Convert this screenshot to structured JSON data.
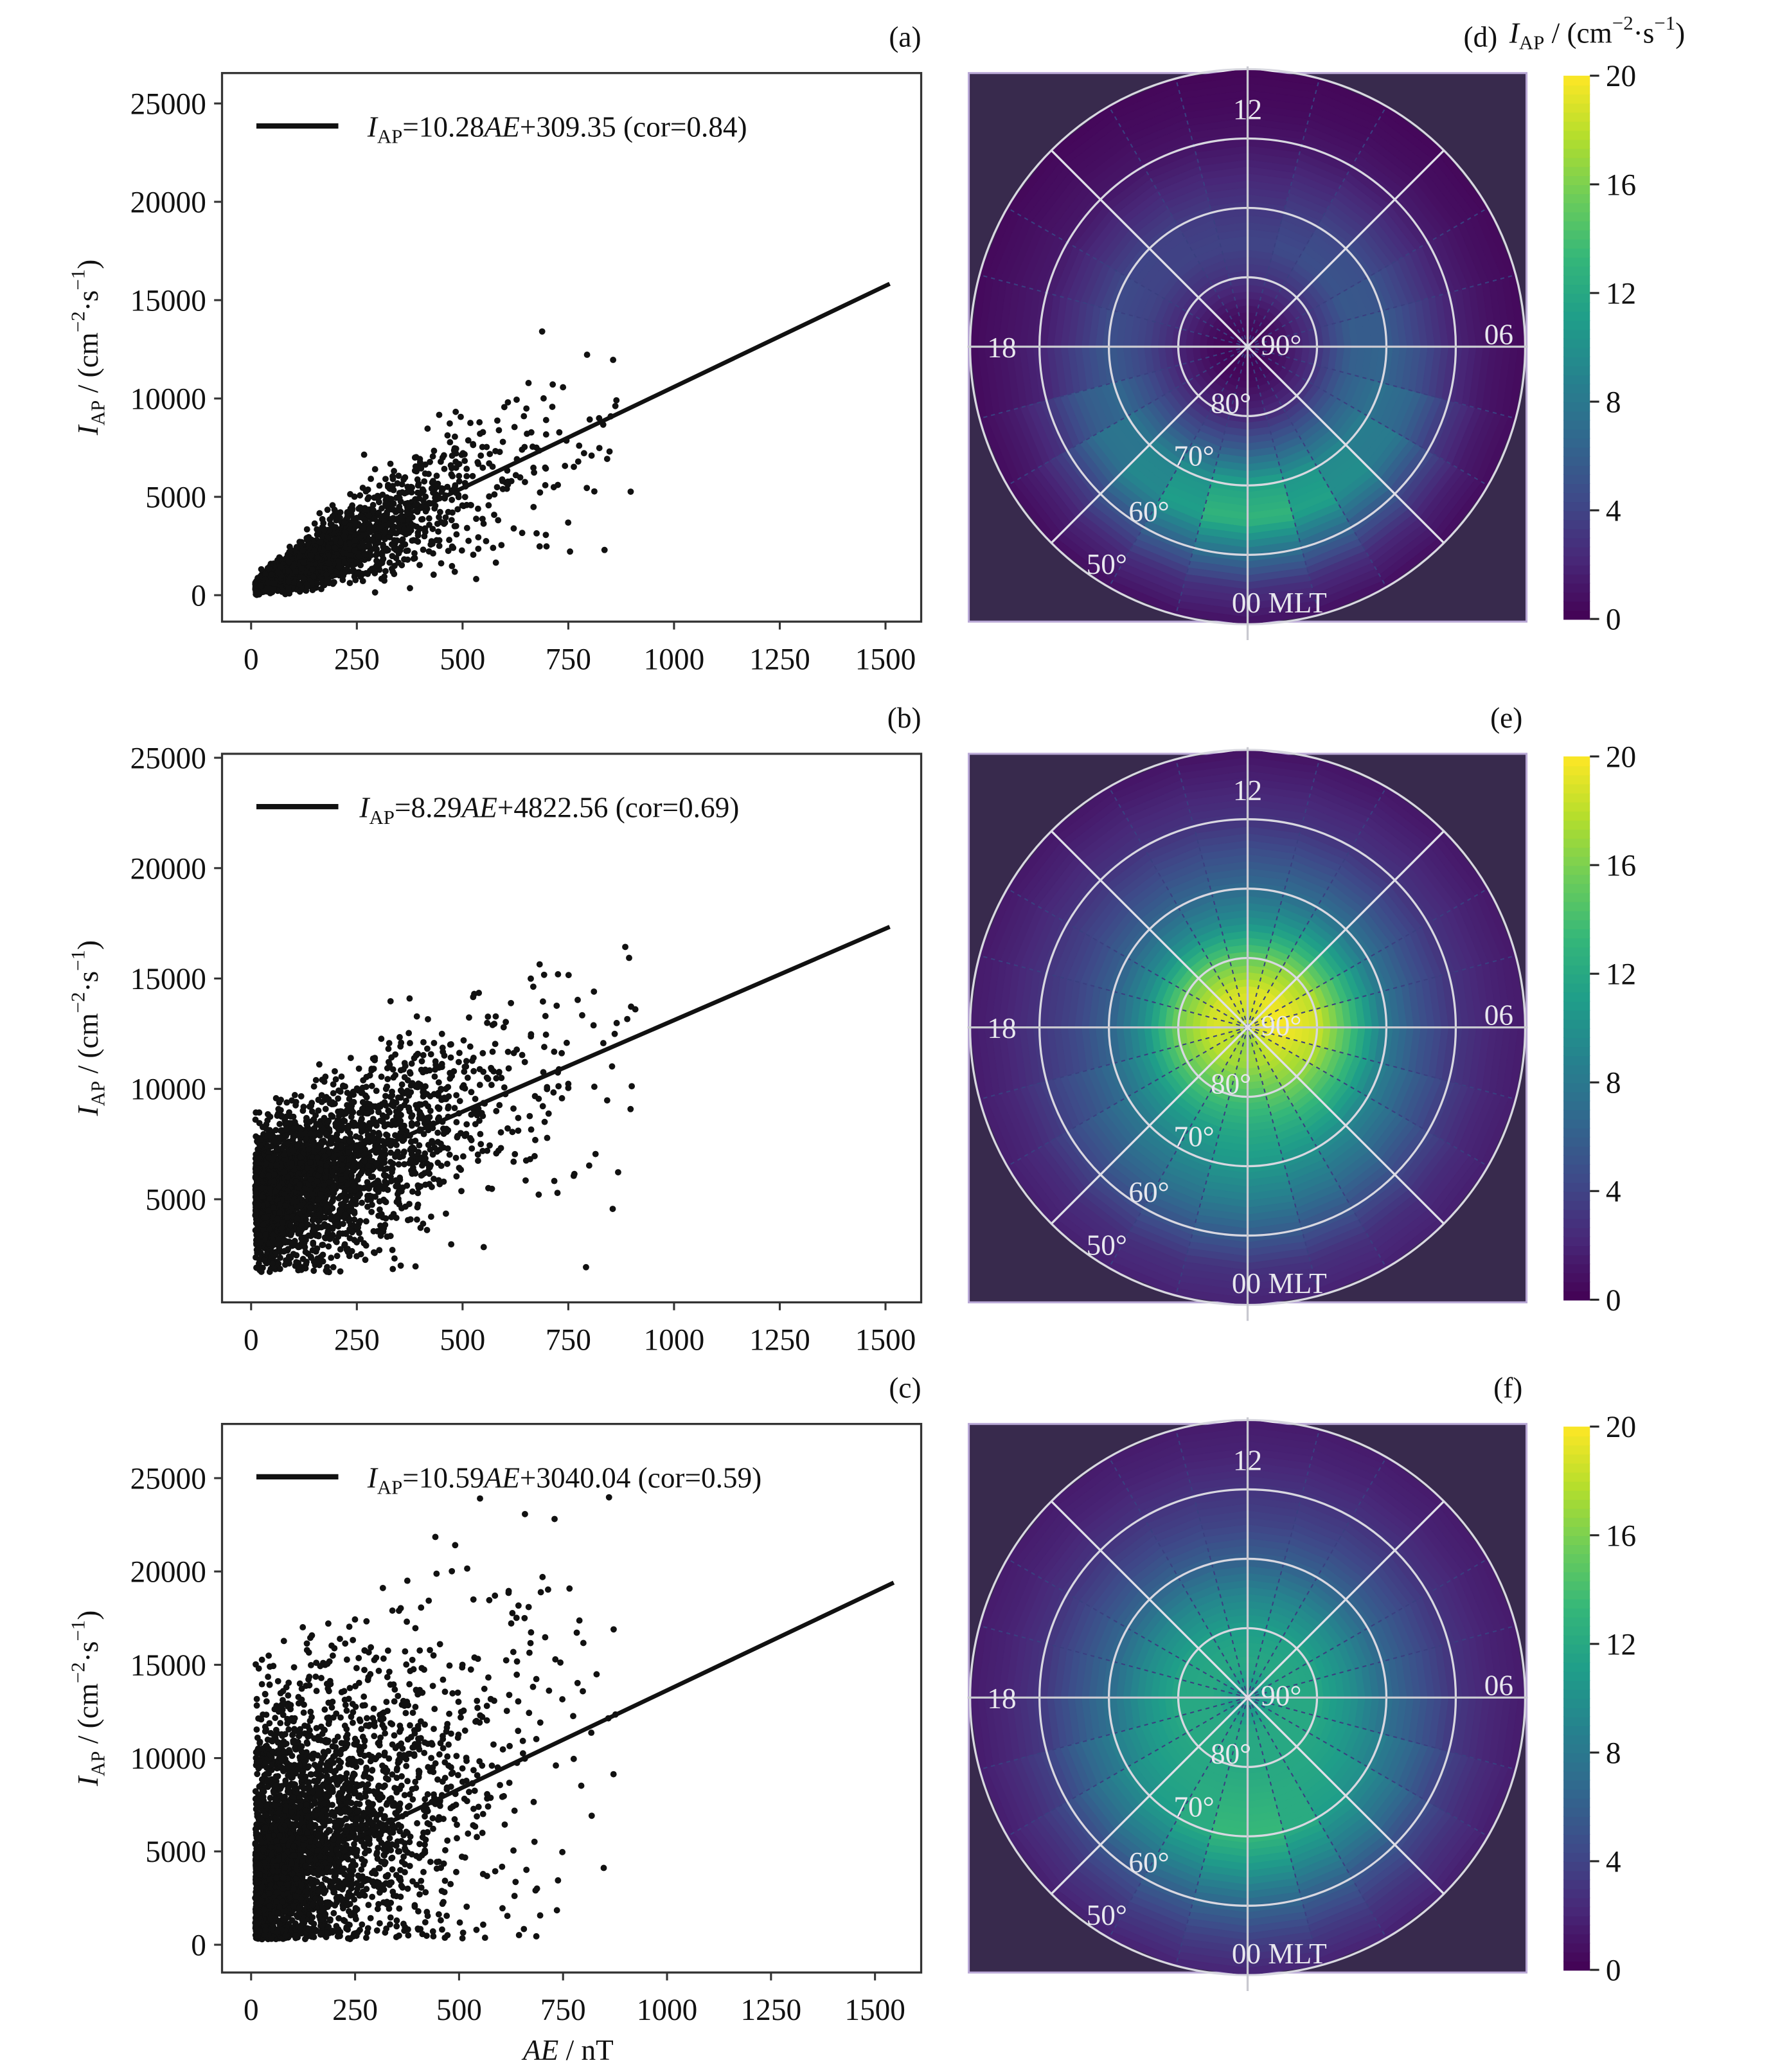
{
  "chart_data": [
    {
      "panel": "(a)",
      "type": "scatter",
      "xlim": [
        0,
        1500
      ],
      "ylim": [
        0,
        25000
      ],
      "xticks": [
        "0",
        "250",
        "500",
        "750",
        "1000",
        "1250",
        "1500"
      ],
      "yticks": [
        "0",
        "5000",
        "10000",
        "15000",
        "20000",
        "25000"
      ],
      "ylabel": {
        "var": "I",
        "sub": "AP",
        "unit": " / (cm",
        "sup1": "−2",
        "mid": "·s",
        "sup2": "−1",
        "end": ")"
      },
      "fit": {
        "slope": 10.28,
        "intercept": 309.35,
        "cor": 0.84
      },
      "legend": {
        "var": "I",
        "sub": "AP",
        "pre": "=10.28",
        "it": "AE",
        "post": "+309.35 (cor=0.84)"
      },
      "legend_placement": "top-left"
    },
    {
      "panel": "(b)",
      "type": "scatter",
      "xlim": [
        0,
        1500
      ],
      "ylim": [
        1500,
        25000
      ],
      "xticks": [
        "0",
        "250",
        "500",
        "750",
        "1000",
        "1250",
        "1500"
      ],
      "yticks": [
        "5000",
        "10000",
        "15000",
        "20000",
        "25000"
      ],
      "ylabel": {
        "var": "I",
        "sub": "AP",
        "unit": " / (cm",
        "sup1": "−2",
        "mid": "·s",
        "sup2": "−1",
        "end": ")"
      },
      "fit": {
        "slope": 8.29,
        "intercept": 4822.56,
        "cor": 0.69
      },
      "legend": {
        "var": "I",
        "sub": "AP",
        "pre": "=8.29",
        "it": "AE",
        "post": "+4822.56 (cor=0.69)"
      },
      "legend_placement": "top-left"
    },
    {
      "panel": "(c)",
      "type": "scatter",
      "xlim": [
        0,
        1550
      ],
      "ylim": [
        0,
        27000
      ],
      "xticks": [
        "0",
        "250",
        "500",
        "750",
        "1000",
        "1250",
        "1500"
      ],
      "yticks": [
        "0",
        "5000",
        "10000",
        "15000",
        "20000",
        "25000"
      ],
      "ylabel": {
        "var": "I",
        "sub": "AP",
        "unit": " / (cm",
        "sup1": "−2",
        "mid": "·s",
        "sup2": "−1",
        "end": ")"
      },
      "xlabel": {
        "it": "AE",
        "rest": " / nT"
      },
      "fit": {
        "slope": 10.59,
        "intercept": 3040.04,
        "cor": 0.59
      },
      "legend": {
        "var": "I",
        "sub": "AP",
        "pre": "=10.59",
        "it": "AE",
        "post": "+3040.04 (cor=0.59)"
      },
      "legend_placement": "top-left"
    },
    {
      "panel": "(d)",
      "type": "heatmap",
      "projection": "polar",
      "colormap": "viridis",
      "clim": [
        0,
        20
      ],
      "cbar_ticks": [
        "0",
        "4",
        "8",
        "12",
        "16",
        "20"
      ],
      "cbar_label": {
        "var": "I",
        "sub": "AP",
        "unit": " / (cm",
        "sup1": "−2",
        "mid": "·s",
        "sup2": "−1",
        "end": ")"
      },
      "mlt_labels": [
        "12",
        "06",
        "00 MLT",
        "18"
      ],
      "lat_labels": [
        "90°",
        "80°",
        "70°",
        "60°",
        "50°"
      ],
      "latitudes": [
        90,
        85,
        80,
        75,
        70,
        65,
        60,
        55,
        50
      ],
      "profiles": {
        "00": [
          0,
          0.5,
          2,
          6,
          12,
          14,
          8,
          3,
          1
        ],
        "06": [
          0,
          1,
          3,
          6,
          6,
          4,
          2,
          1,
          0.5
        ],
        "12": [
          0,
          1,
          3,
          4,
          3,
          2,
          1,
          0.5,
          0.3
        ],
        "18": [
          0,
          0.5,
          2,
          4,
          5,
          3,
          1.5,
          1,
          0.5
        ]
      }
    },
    {
      "panel": "(e)",
      "type": "heatmap",
      "projection": "polar",
      "colormap": "viridis",
      "clim": [
        0,
        20
      ],
      "cbar_ticks": [
        "0",
        "4",
        "8",
        "12",
        "16",
        "20"
      ],
      "mlt_labels": [
        "12",
        "06",
        "00 MLT",
        "18"
      ],
      "lat_labels": [
        "90°",
        "80°",
        "70°",
        "60°",
        "50°"
      ],
      "latitudes": [
        90,
        85,
        80,
        75,
        70,
        65,
        60,
        55,
        50
      ],
      "profiles": {
        "00": [
          16,
          17,
          14,
          12,
          11,
          9,
          6,
          3,
          2
        ],
        "06": [
          19,
          20,
          19,
          14,
          8,
          5,
          3,
          2,
          1.5
        ],
        "12": [
          18,
          19,
          15,
          10,
          7,
          5,
          3,
          2,
          1
        ],
        "18": [
          18,
          19,
          16,
          10,
          6,
          4,
          3,
          2,
          1.5
        ]
      }
    },
    {
      "panel": "(f)",
      "type": "heatmap",
      "projection": "polar",
      "colormap": "viridis",
      "clim": [
        0,
        20
      ],
      "cbar_ticks": [
        "0",
        "4",
        "8",
        "12",
        "16",
        "20"
      ],
      "mlt_labels": [
        "12",
        "06",
        "00 MLT",
        "18"
      ],
      "lat_labels": [
        "90°",
        "80°",
        "70°",
        "60°",
        "50°"
      ],
      "latitudes": [
        90,
        85,
        80,
        75,
        70,
        65,
        60,
        55,
        50
      ],
      "profiles": {
        "00": [
          10,
          12,
          12,
          13,
          14,
          11,
          7,
          4,
          2
        ],
        "06": [
          10,
          12,
          12,
          10,
          7,
          5,
          3,
          2,
          1.5
        ],
        "12": [
          10,
          12,
          11,
          9,
          6,
          4,
          3,
          2,
          1.5
        ],
        "18": [
          10,
          12,
          12,
          10,
          7,
          5,
          3,
          2,
          1.5
        ]
      }
    }
  ]
}
